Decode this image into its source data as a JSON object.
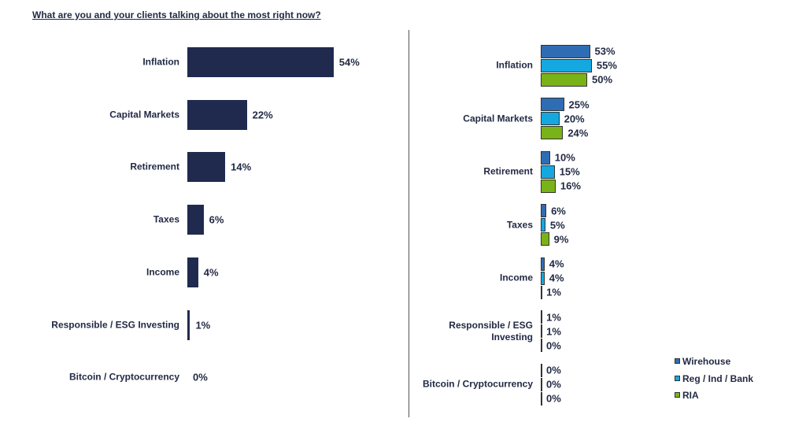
{
  "chart_data": [
    {
      "type": "bar",
      "orientation": "horizontal",
      "title": "What are you and your clients talking about the most right now?",
      "categories": [
        "Inflation",
        "Capital Markets",
        "Retirement",
        "Taxes",
        "Income",
        "Responsible / ESG Investing",
        "Bitcoin / Cryptocurrency"
      ],
      "values": [
        54,
        22,
        14,
        6,
        4,
        1,
        0
      ],
      "value_labels": [
        "54%",
        "22%",
        "14%",
        "6%",
        "4%",
        "1%",
        "0%"
      ],
      "color": "#202a4f"
    },
    {
      "type": "grouped-bar",
      "orientation": "horizontal",
      "legend": "bottom-right",
      "categories": [
        "Inflation",
        "Capital Markets",
        "Retirement",
        "Taxes",
        "Income",
        "Responsible / ESG Investing",
        "Bitcoin / Cryptocurrency"
      ],
      "series": [
        {
          "name": "Wirehouse",
          "color": "#2e6db4",
          "values": [
            53,
            25,
            10,
            6,
            4,
            1,
            0
          ],
          "value_labels": [
            "53%",
            "25%",
            "10%",
            "6%",
            "4%",
            "1%",
            "0%"
          ]
        },
        {
          "name": "Reg / Ind / Bank",
          "color": "#15a8e0",
          "values": [
            55,
            20,
            15,
            5,
            4,
            1,
            0
          ],
          "value_labels": [
            "55%",
            "20%",
            "15%",
            "5%",
            "4%",
            "1%",
            "0%"
          ]
        },
        {
          "name": "RIA",
          "color": "#7ab317",
          "values": [
            50,
            24,
            16,
            9,
            1,
            0,
            0
          ],
          "value_labels": [
            "50%",
            "24%",
            "16%",
            "9%",
            "1%",
            "0%",
            "0%"
          ]
        }
      ]
    }
  ]
}
